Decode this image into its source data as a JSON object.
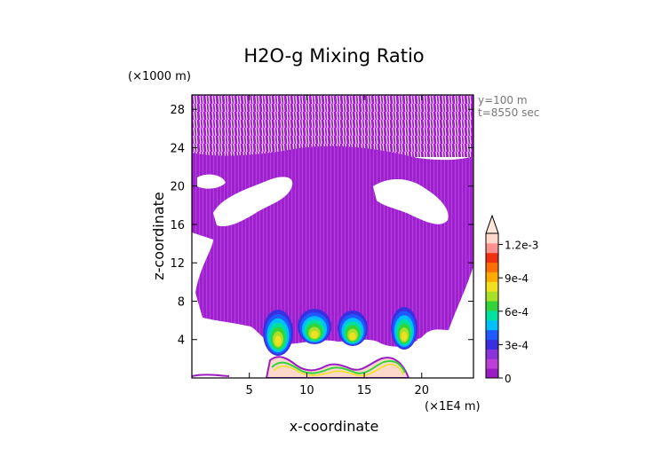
{
  "chart_data": {
    "type": "heatmap",
    "title": "H2O-g Mixing Ratio",
    "xlabel": "x-coordinate",
    "ylabel": "z-coordinate",
    "x_unit": "(×1E4 m)",
    "y_unit": "(×1000 m)",
    "annotations": [
      "y=100 m",
      "t=8550 sec"
    ],
    "xlim": [
      0,
      24.5
    ],
    "ylim": [
      0,
      29.5
    ],
    "x_ticks": [
      5,
      10,
      15,
      20
    ],
    "y_ticks": [
      4,
      8,
      12,
      16,
      20,
      24,
      28
    ],
    "colorbar": {
      "min": 0,
      "max": 0.0013,
      "extend": "max",
      "tick_values": [
        0,
        0.0003,
        0.0006,
        0.0009,
        0.0012
      ],
      "tick_labels": [
        "0",
        "3e-4",
        "6e-4",
        "9e-4",
        "1.2e-3"
      ],
      "colors": [
        "#9B1CC4",
        "#BB3FD6",
        "#8A33D8",
        "#3A2FE0",
        "#1E5AFF",
        "#00BFFF",
        "#00E0A0",
        "#33D43A",
        "#A8E02A",
        "#F0E020",
        "#FFAA00",
        "#FF6E00",
        "#F03010",
        "#FF9090",
        "#FFD8CC"
      ],
      "extend_color": "#FFE6D8"
    },
    "regions": [
      {
        "name": "upper-layer-mixing-ratio",
        "value_range": [
          0,
          0.0001
        ],
        "z_range": [
          4,
          29.5
        ]
      },
      {
        "name": "convective-cells",
        "value_range": [
          0.0002,
          0.0007
        ],
        "x_range": [
          7,
          19.5
        ],
        "z_range": [
          3,
          8
        ]
      },
      {
        "name": "surface-layer",
        "value_range": [
          0,
          0.0013
        ],
        "x_range": [
          6,
          20
        ],
        "z_range": [
          0,
          2
        ]
      }
    ]
  }
}
